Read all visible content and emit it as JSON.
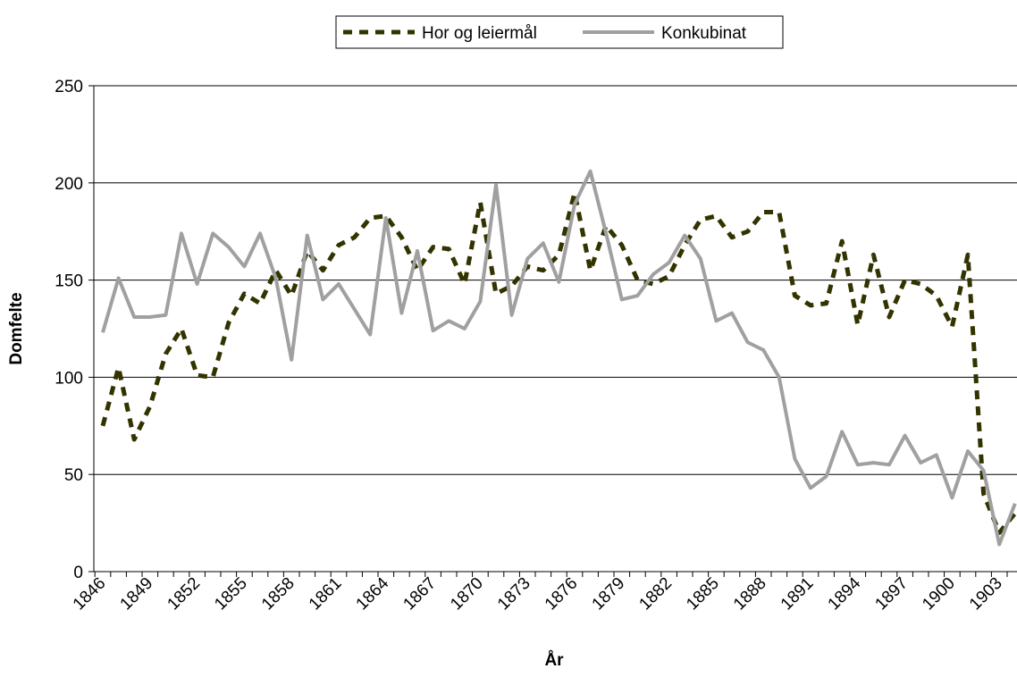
{
  "chart_data": {
    "type": "line",
    "x_label": "År",
    "y_label": "Domfelte",
    "categories": [
      "1846",
      null,
      null,
      "1849",
      null,
      null,
      "1852",
      null,
      null,
      "1855",
      null,
      null,
      "1858",
      null,
      null,
      "1861",
      null,
      null,
      "1864",
      null,
      null,
      "1867",
      null,
      null,
      "1870",
      null,
      null,
      "1873",
      null,
      null,
      "1876",
      null,
      null,
      "1879",
      null,
      null,
      "1882",
      null,
      null,
      "1885",
      null,
      null,
      "1888",
      null,
      null,
      "1891",
      null,
      null,
      "1894",
      null,
      null,
      "1897",
      null,
      null,
      "1900",
      null,
      null,
      "1903",
      null
    ],
    "series": [
      {
        "name": "Hor og leiermål",
        "color": "#333300",
        "dashed": true,
        "values": [
          75,
          105,
          68,
          85,
          112,
          125,
          101,
          100,
          128,
          143,
          138,
          155,
          142,
          165,
          155,
          168,
          172,
          182,
          183,
          172,
          155,
          167,
          166,
          148,
          190,
          143,
          147,
          157,
          155,
          163,
          195,
          155,
          178,
          168,
          150,
          148,
          152,
          168,
          181,
          183,
          172,
          175,
          185,
          185,
          142,
          137,
          138,
          170,
          127,
          163,
          131,
          150,
          148,
          142,
          126,
          163,
          40,
          20,
          30
        ]
      },
      {
        "name": "Konkubinat",
        "color": "#a0a0a0",
        "dashed": false,
        "values": [
          123,
          151,
          131,
          131,
          132,
          174,
          148,
          174,
          167,
          157,
          174,
          151,
          109,
          173,
          140,
          148,
          135,
          122,
          182,
          133,
          165,
          124,
          129,
          125,
          139,
          199,
          132,
          161,
          169,
          149,
          189,
          206,
          174,
          140,
          142,
          153,
          159,
          173,
          161,
          129,
          133,
          118,
          114,
          100,
          58,
          43,
          49,
          72,
          55,
          56,
          55,
          70,
          56,
          60,
          38,
          62,
          52,
          14,
          35
        ]
      }
    ],
    "ylim": [
      0,
      250
    ],
    "yticks": [
      0,
      50,
      100,
      150,
      200,
      250
    ],
    "grid": true
  }
}
